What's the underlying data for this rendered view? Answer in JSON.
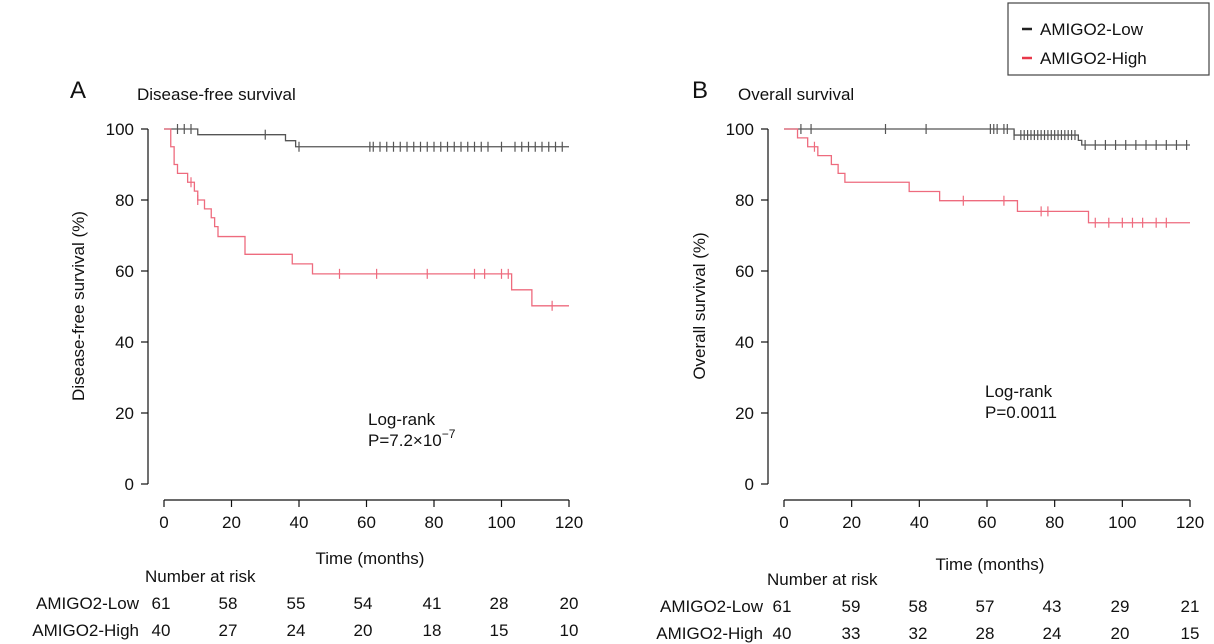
{
  "legend": {
    "entries": [
      {
        "label": "AMIGO2-Low",
        "color": "#222222"
      },
      {
        "label": "AMIGO2-High",
        "color": "#e8384a"
      }
    ]
  },
  "colors": {
    "low": "#555555",
    "high": "#ee6b7e",
    "low_legend": "#222222",
    "high_legend": "#e8384a"
  },
  "panels": [
    {
      "letter": "A",
      "title": "Disease-free survival",
      "xlabel": "Time (months)",
      "ylabel": "Disease-free survival (%)",
      "annotation_line1": "Log-rank",
      "annotation_line2_prefix": "P=7.2×10",
      "annotation_line2_exp": "−7",
      "risk_title": "Number at risk",
      "risk_rows": [
        {
          "group": "AMIGO2-Low",
          "values": [
            "61",
            "58",
            "55",
            "54",
            "41",
            "28",
            "20"
          ]
        },
        {
          "group": "AMIGO2-High",
          "values": [
            "40",
            "27",
            "24",
            "20",
            "18",
            "15",
            "10"
          ]
        }
      ]
    },
    {
      "letter": "B",
      "title": "Overall survival",
      "xlabel": "Time (months)",
      "ylabel": "Overall survival (%)",
      "annotation_line1": "Log-rank",
      "annotation_line2_prefix": "P=0.0011",
      "annotation_line2_exp": "",
      "risk_title": "Number at risk",
      "risk_rows": [
        {
          "group": "AMIGO2-Low",
          "values": [
            "61",
            "59",
            "58",
            "57",
            "43",
            "29",
            "21"
          ]
        },
        {
          "group": "AMIGO2-High",
          "values": [
            "40",
            "33",
            "32",
            "28",
            "24",
            "20",
            "15"
          ]
        }
      ]
    }
  ],
  "chart_data": [
    {
      "type": "line",
      "title": "Disease-free survival",
      "xlabel": "Time (months)",
      "ylabel": "Disease-free survival (%)",
      "xlim": [
        0,
        120
      ],
      "ylim": [
        0,
        100
      ],
      "xticks": [
        0,
        20,
        40,
        60,
        80,
        100,
        120
      ],
      "yticks": [
        0,
        20,
        40,
        60,
        80,
        100
      ],
      "step": true,
      "series": [
        {
          "name": "AMIGO2-Low",
          "points": [
            [
              0,
              100
            ],
            [
              10,
              100
            ],
            [
              10,
              98.4
            ],
            [
              36,
              98.4
            ],
            [
              36,
              96.7
            ],
            [
              39,
              96.7
            ],
            [
              39,
              95
            ],
            [
              120,
              95
            ]
          ],
          "censors": [
            4,
            6,
            8,
            30,
            40,
            61,
            62,
            64,
            66,
            68,
            70,
            72,
            74,
            76,
            78,
            80,
            82,
            84,
            86,
            88,
            90,
            92,
            94,
            96,
            100,
            104,
            106,
            108,
            110,
            112,
            114,
            116,
            118
          ]
        },
        {
          "name": "AMIGO2-High",
          "points": [
            [
              0,
              100
            ],
            [
              2,
              100
            ],
            [
              2,
              95
            ],
            [
              3,
              95
            ],
            [
              3,
              90
            ],
            [
              4,
              90
            ],
            [
              4,
              87.5
            ],
            [
              7,
              87.5
            ],
            [
              7,
              85
            ],
            [
              9,
              85
            ],
            [
              9,
              82.5
            ],
            [
              10,
              82.5
            ],
            [
              10,
              80
            ],
            [
              12,
              80
            ],
            [
              12,
              77.5
            ],
            [
              14,
              77.5
            ],
            [
              14,
              75
            ],
            [
              15,
              75
            ],
            [
              15,
              72.5
            ],
            [
              16,
              72.5
            ],
            [
              16,
              69.7
            ],
            [
              24,
              69.7
            ],
            [
              24,
              64.7
            ],
            [
              38,
              64.7
            ],
            [
              38,
              62
            ],
            [
              44,
              62
            ],
            [
              44,
              59.2
            ],
            [
              103,
              59.2
            ],
            [
              103,
              54.7
            ],
            [
              109,
              54.7
            ],
            [
              109,
              50.2
            ],
            [
              120,
              50.2
            ]
          ],
          "censors": [
            8,
            10,
            52,
            63,
            78,
            92,
            95,
            100,
            102,
            115
          ]
        }
      ]
    },
    {
      "type": "line",
      "title": "Overall survival",
      "xlabel": "Time (months)",
      "ylabel": "Overall survival (%)",
      "xlim": [
        0,
        120
      ],
      "ylim": [
        0,
        100
      ],
      "xticks": [
        0,
        20,
        40,
        60,
        80,
        100,
        120
      ],
      "yticks": [
        0,
        20,
        40,
        60,
        80,
        100
      ],
      "step": true,
      "series": [
        {
          "name": "AMIGO2-Low",
          "points": [
            [
              0,
              100
            ],
            [
              68,
              100
            ],
            [
              68,
              98.3
            ],
            [
              87,
              98.3
            ],
            [
              87,
              96.8
            ],
            [
              88,
              96.8
            ],
            [
              88,
              95.5
            ],
            [
              120,
              95.5
            ]
          ],
          "censors": [
            5,
            8,
            30,
            42,
            61,
            62,
            63,
            65,
            66,
            68,
            70,
            71,
            72,
            73,
            74,
            75,
            76,
            77,
            78,
            79,
            80,
            81,
            82,
            83,
            84,
            85,
            86,
            89,
            92,
            95,
            98,
            101,
            104,
            107,
            110,
            113,
            116,
            119
          ]
        },
        {
          "name": "AMIGO2-High",
          "points": [
            [
              0,
              100
            ],
            [
              4,
              100
            ],
            [
              4,
              97.5
            ],
            [
              7,
              97.5
            ],
            [
              7,
              95
            ],
            [
              10,
              95
            ],
            [
              10,
              92.5
            ],
            [
              14,
              92.5
            ],
            [
              14,
              90
            ],
            [
              16,
              90
            ],
            [
              16,
              87.5
            ],
            [
              18,
              87.5
            ],
            [
              18,
              85
            ],
            [
              37,
              85
            ],
            [
              37,
              82.4
            ],
            [
              46,
              82.4
            ],
            [
              46,
              79.8
            ],
            [
              69,
              79.8
            ],
            [
              69,
              76.8
            ],
            [
              90,
              76.8
            ],
            [
              90,
              73.6
            ],
            [
              120,
              73.6
            ]
          ],
          "censors": [
            9,
            53,
            65,
            76,
            78,
            92,
            96,
            100,
            103,
            106,
            110,
            113
          ]
        }
      ]
    }
  ]
}
